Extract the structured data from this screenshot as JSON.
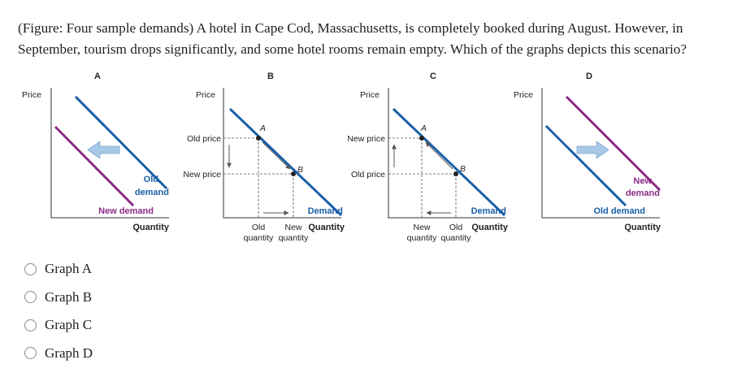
{
  "question": {
    "text": "(Figure: Four sample demands) A hotel in Cape Cod, Massachusetts, is completely booked during August. However, in September, tourism drops significantly, and some hotel rooms remain empty. Which of the graphs depicts this scenario?"
  },
  "graphs": {
    "a": {
      "letter": "A",
      "ylabel": "Price",
      "xlabel": "Quantity",
      "old_demand_line1": "Old",
      "old_demand_line2": "demand",
      "new_demand": "New demand"
    },
    "b": {
      "letter": "B",
      "ylabel": "Price",
      "old_price": "Old price",
      "new_price": "New price",
      "point_a": "A",
      "point_b": "B",
      "demand": "Demand",
      "old_qty_line1": "Old",
      "old_qty_line2": "quantity",
      "new_qty_line1": "New",
      "new_qty_line2": "quantity",
      "xlabel": "Quantity"
    },
    "c": {
      "letter": "C",
      "ylabel": "Price",
      "new_price": "New price",
      "old_price": "Old price",
      "point_a": "A",
      "point_b": "B",
      "demand": "Demand",
      "new_qty_line1": "New",
      "new_qty_line2": "quantity",
      "old_qty_line1": "Old",
      "old_qty_line2": "quantity",
      "xlabel": "Quantity"
    },
    "d": {
      "letter": "D",
      "ylabel": "Price",
      "new_demand_line1": "New",
      "new_demand_line2": "demand",
      "old_demand": "Old demand",
      "xlabel": "Quantity"
    }
  },
  "colors": {
    "demand_blue": "#1a5fa8",
    "new_demand_purple": "#8b2a86",
    "shift_arrow": "#a8c8e8"
  },
  "options": [
    {
      "label": "Graph A"
    },
    {
      "label": "Graph B"
    },
    {
      "label": "Graph C"
    },
    {
      "label": "Graph D"
    }
  ]
}
